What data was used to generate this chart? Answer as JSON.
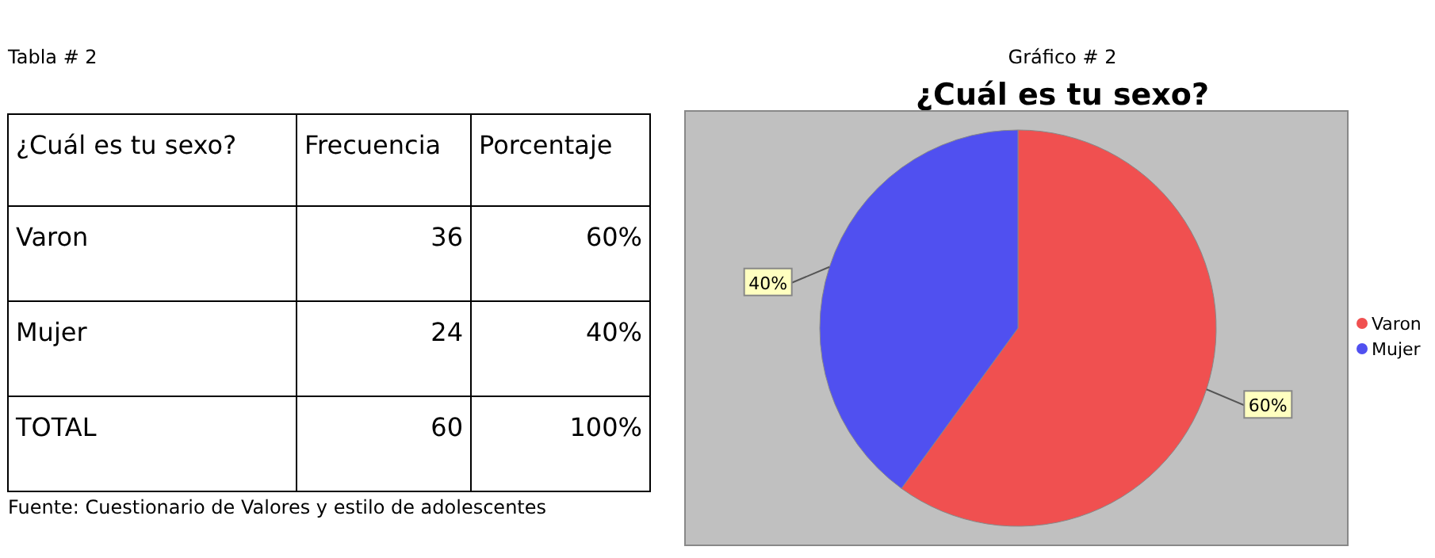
{
  "chart_data": [
    {
      "type": "other",
      "title": "Tabla # 2",
      "xlabel": "¿Cuál es tu sexo?",
      "categories": [
        "Varon",
        "Mujer",
        "TOTAL"
      ],
      "data_labels": true,
      "series": [
        {
          "name": "Frecuencia",
          "values": [
            36,
            24,
            60
          ]
        },
        {
          "name": "Porcentaje",
          "values": [
            60,
            40,
            100
          ],
          "value_labels": [
            "60%",
            "40%",
            "100%"
          ]
        }
      ],
      "annotations": [
        "Fuente: Cuestionario de Valores y estilo de adolescentes"
      ]
    },
    {
      "type": "pie",
      "title": "¿Cuál es tu sexo?",
      "categories": [
        "Varon",
        "Mujer"
      ],
      "values": [
        60,
        40
      ],
      "colors": [
        "#f05050",
        "#5050f0"
      ],
      "value_labels": [
        "60%",
        "40%"
      ],
      "legend": "right",
      "annotations": [
        "Gráfico # 2"
      ]
    }
  ]
}
